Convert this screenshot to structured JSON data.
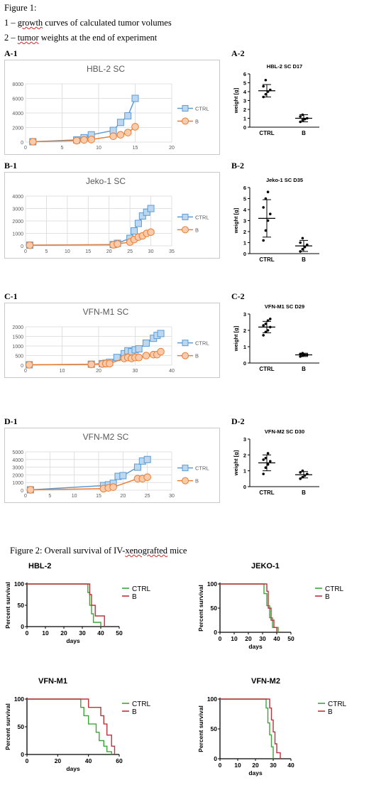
{
  "captions": {
    "fig1_title": "Figure 1:",
    "fig1_line1_pre": "1 – ",
    "fig1_line1_sq": "growth",
    "fig1_line1_post": " curves of calculated tumor volumes",
    "fig1_line2_pre": "2 – ",
    "fig1_line2_sq": "tumor",
    "fig1_line2_post": " weights at the end of experiment",
    "fig2_pre": "Figure 2: Overall survival of IV-",
    "fig2_sq": "xenografted",
    "fig2_post": " mice"
  },
  "panels": {
    "a1": "A-1",
    "a2": "A-2",
    "b1": "B-1",
    "b2": "B-2",
    "c1": "C-1",
    "c2": "C-2",
    "d1": "D-1",
    "d2": "D-2"
  },
  "colors": {
    "ctrl_line": "#5b9bd5",
    "ctrl_fill": "#bdd7ee",
    "b_line": "#ed7d31",
    "b_fill": "#f8cbad",
    "surv_ctrl": "#3aa63a",
    "surv_b": "#c0313a"
  },
  "chart_data": [
    {
      "id": "growth-hbl2",
      "type": "line",
      "title": "HBL-2 SC",
      "xlim": [
        0,
        20
      ],
      "xticks": [
        0,
        5,
        10,
        15,
        20
      ],
      "ylim": [
        0,
        8000
      ],
      "yticks": [
        0,
        2000,
        4000,
        6000,
        8000
      ],
      "grid": true,
      "legend": "right",
      "series": [
        {
          "name": "CTRL",
          "x": [
            1,
            7,
            8,
            9,
            12,
            13,
            14,
            15
          ],
          "y": [
            50,
            300,
            600,
            1000,
            1600,
            2700,
            3600,
            6000
          ]
        },
        {
          "name": "B",
          "x": [
            1,
            7,
            8,
            9,
            12,
            13,
            14,
            15
          ],
          "y": [
            50,
            200,
            300,
            350,
            800,
            1000,
            1300,
            2100
          ]
        }
      ]
    },
    {
      "id": "growth-jeko1",
      "type": "line",
      "title": "Jeko-1 SC",
      "xlim": [
        0,
        35
      ],
      "xticks": [
        0,
        5,
        10,
        15,
        20,
        25,
        30,
        35
      ],
      "ylim": [
        0,
        4000
      ],
      "yticks": [
        0,
        1000,
        2000,
        3000,
        4000
      ],
      "grid": true,
      "legend": "right",
      "series": [
        {
          "name": "CTRL",
          "x": [
            1,
            21,
            22,
            25,
            26,
            27,
            28,
            29,
            30
          ],
          "y": [
            50,
            100,
            200,
            600,
            1200,
            1800,
            2400,
            2700,
            3000
          ]
        },
        {
          "name": "B",
          "x": [
            1,
            21,
            22,
            25,
            26,
            27,
            28,
            29,
            30
          ],
          "y": [
            50,
            80,
            150,
            300,
            500,
            700,
            800,
            1000,
            1100
          ]
        }
      ]
    },
    {
      "id": "growth-vfnm1",
      "type": "line",
      "title": "VFN-M1 SC",
      "xlim": [
        0,
        40
      ],
      "xticks": [
        0,
        10,
        20,
        30,
        40
      ],
      "ylim": [
        0,
        2000
      ],
      "yticks": [
        0,
        500,
        1000,
        1500,
        2000
      ],
      "grid": true,
      "legend": "right",
      "series": [
        {
          "name": "CTRL",
          "x": [
            1,
            18,
            21,
            22,
            23,
            25,
            27,
            28,
            29,
            30,
            31,
            33,
            35,
            36,
            37
          ],
          "y": [
            20,
            50,
            80,
            100,
            150,
            400,
            600,
            750,
            700,
            800,
            850,
            1150,
            1400,
            1550,
            1650
          ]
        },
        {
          "name": "B",
          "x": [
            1,
            18,
            21,
            22,
            23,
            27,
            28,
            29,
            30,
            31,
            33,
            35,
            36,
            37
          ],
          "y": [
            20,
            40,
            60,
            80,
            80,
            350,
            400,
            350,
            400,
            400,
            500,
            550,
            550,
            700
          ]
        }
      ]
    },
    {
      "id": "growth-vfnm2",
      "type": "line",
      "title": "VFN-M2 SC",
      "xlim": [
        0,
        30
      ],
      "xticks": [
        0,
        5,
        10,
        15,
        20,
        25,
        30
      ],
      "ylim": [
        0,
        5000
      ],
      "yticks": [
        0,
        1000,
        2000,
        3000,
        4000,
        5000
      ],
      "grid": true,
      "legend": "right",
      "series": [
        {
          "name": "CTRL",
          "x": [
            1,
            16,
            17,
            18,
            19,
            20,
            23,
            24,
            25
          ],
          "y": [
            50,
            600,
            700,
            900,
            1800,
            1900,
            3000,
            3800,
            4000
          ]
        },
        {
          "name": "B",
          "x": [
            1,
            16,
            17,
            18,
            23,
            24,
            25
          ],
          "y": [
            50,
            200,
            300,
            400,
            1500,
            1500,
            1700
          ]
        }
      ]
    },
    {
      "id": "weight-hbl2",
      "type": "scatter",
      "title": "HBL-2 SC   D17",
      "ylabel": "weight [g]",
      "categories": [
        "CTRL",
        "B"
      ],
      "ylim": [
        0,
        6
      ],
      "yticks": [
        0,
        1,
        2,
        3,
        4,
        5,
        6
      ],
      "groups": [
        {
          "name": "CTRL",
          "mean": 4.1,
          "sd": 0.7,
          "points": [
            3.4,
            3.7,
            4.0,
            4.2,
            4.6,
            5.3
          ]
        },
        {
          "name": "B",
          "mean": 1.0,
          "sd": 0.4,
          "points": [
            0.6,
            0.8,
            0.9,
            1.0,
            1.2,
            1.4
          ]
        }
      ]
    },
    {
      "id": "weight-jeko1",
      "type": "scatter",
      "title": "Jeko-1 SC   D35",
      "ylabel": "weight [g]",
      "categories": [
        "CTRL",
        "B"
      ],
      "ylim": [
        0,
        6
      ],
      "yticks": [
        0,
        1,
        2,
        3,
        4,
        5,
        6
      ],
      "groups": [
        {
          "name": "CTRL",
          "mean": 3.2,
          "sd": 1.7,
          "points": [
            1.2,
            2.1,
            3.0,
            3.6,
            4.2,
            5.0,
            5.6
          ]
        },
        {
          "name": "B",
          "mean": 0.7,
          "sd": 0.5,
          "points": [
            0.2,
            0.4,
            0.6,
            0.8,
            1.0,
            1.4
          ]
        }
      ]
    },
    {
      "id": "weight-vfnm1",
      "type": "scatter",
      "title": "VFN-M1 SC   D29",
      "ylabel": "weight [g]",
      "categories": [
        "CTRL",
        "B"
      ],
      "ylim": [
        0,
        3
      ],
      "yticks": [
        0,
        1,
        2,
        3
      ],
      "groups": [
        {
          "name": "CTRL",
          "mean": 2.2,
          "sd": 0.35,
          "points": [
            1.7,
            1.9,
            2.0,
            2.2,
            2.3,
            2.4,
            2.6,
            2.7
          ]
        },
        {
          "name": "B",
          "mean": 0.5,
          "sd": 0.1,
          "points": [
            0.4,
            0.45,
            0.5,
            0.5,
            0.55,
            0.6
          ]
        }
      ]
    },
    {
      "id": "weight-vfnm2",
      "type": "scatter",
      "title": "VFN-M2 SC   D30",
      "ylabel": "weight [g]",
      "categories": [
        "CTRL",
        "B"
      ],
      "ylim": [
        0,
        3
      ],
      "yticks": [
        0,
        1,
        2,
        3
      ],
      "groups": [
        {
          "name": "CTRL",
          "mean": 1.5,
          "sd": 0.5,
          "points": [
            0.8,
            1.2,
            1.4,
            1.6,
            1.7,
            1.8,
            2.1
          ]
        },
        {
          "name": "B",
          "mean": 0.75,
          "sd": 0.2,
          "points": [
            0.5,
            0.6,
            0.7,
            0.8,
            0.9,
            1.0
          ]
        }
      ]
    },
    {
      "id": "surv-hbl2",
      "type": "line",
      "title": "HBL-2",
      "xlabel": "days",
      "ylabel": "Percent survival",
      "xlim": [
        0,
        50
      ],
      "xticks": [
        0,
        10,
        20,
        30,
        40,
        50
      ],
      "ylim": [
        0,
        100
      ],
      "yticks": [
        0,
        50,
        100
      ],
      "series": [
        {
          "name": "CTRL",
          "x": [
            0,
            33,
            33,
            34,
            34,
            35,
            35,
            36,
            36,
            40,
            40
          ],
          "y": [
            100,
            100,
            80,
            80,
            50,
            50,
            30,
            30,
            10,
            10,
            0
          ]
        },
        {
          "name": "B",
          "x": [
            0,
            34,
            34,
            35,
            35,
            37,
            37,
            42,
            42
          ],
          "y": [
            100,
            100,
            75,
            75,
            50,
            50,
            25,
            25,
            0
          ]
        }
      ]
    },
    {
      "id": "surv-jeko1",
      "type": "line",
      "title": "JEKO-1",
      "xlabel": "days",
      "ylabel": "Percent survival",
      "xlim": [
        0,
        50
      ],
      "xticks": [
        0,
        10,
        20,
        30,
        40,
        50
      ],
      "ylim": [
        0,
        100
      ],
      "yticks": [
        0,
        50,
        100
      ],
      "series": [
        {
          "name": "CTRL",
          "x": [
            0,
            31,
            31,
            33,
            33,
            35,
            35,
            37,
            37,
            41,
            41
          ],
          "y": [
            100,
            100,
            80,
            80,
            55,
            55,
            30,
            30,
            10,
            10,
            0
          ]
        },
        {
          "name": "B",
          "x": [
            0,
            33,
            33,
            34,
            34,
            36,
            36,
            38,
            38,
            40,
            40
          ],
          "y": [
            100,
            100,
            85,
            85,
            50,
            50,
            25,
            25,
            10,
            10,
            0
          ]
        }
      ]
    },
    {
      "id": "surv-vfnm1",
      "type": "line",
      "title": "VFN-M1",
      "xlabel": "days",
      "ylabel": "Percent survival",
      "xlim": [
        0,
        60
      ],
      "xticks": [
        0,
        20,
        40,
        60
      ],
      "ylim": [
        0,
        100
      ],
      "yticks": [
        0,
        50,
        100
      ],
      "series": [
        {
          "name": "CTRL",
          "x": [
            0,
            35,
            35,
            37,
            37,
            40,
            40,
            45,
            45,
            47,
            47,
            50,
            50,
            52,
            52,
            55,
            55
          ],
          "y": [
            100,
            100,
            85,
            85,
            70,
            70,
            55,
            55,
            40,
            40,
            25,
            25,
            15,
            15,
            5,
            5,
            0
          ]
        },
        {
          "name": "B",
          "x": [
            0,
            40,
            40,
            48,
            48,
            50,
            50,
            52,
            52,
            55,
            55,
            57,
            57
          ],
          "y": [
            100,
            100,
            85,
            85,
            70,
            70,
            55,
            55,
            35,
            35,
            15,
            15,
            0
          ]
        }
      ]
    },
    {
      "id": "surv-vfnm2",
      "type": "line",
      "title": "VFN-M2",
      "xlabel": "days",
      "ylabel": "Percent survival",
      "xlim": [
        0,
        40
      ],
      "xticks": [
        0,
        10,
        20,
        30,
        40
      ],
      "ylim": [
        0,
        100
      ],
      "yticks": [
        0,
        50,
        100
      ],
      "series": [
        {
          "name": "CTRL",
          "x": [
            0,
            26,
            26,
            27,
            27,
            28,
            28,
            29,
            29,
            30,
            30
          ],
          "y": [
            100,
            100,
            85,
            85,
            60,
            60,
            40,
            40,
            20,
            20,
            0
          ]
        },
        {
          "name": "B",
          "x": [
            0,
            28,
            28,
            29,
            29,
            30,
            30,
            31,
            31,
            32,
            32,
            34,
            34
          ],
          "y": [
            100,
            100,
            85,
            85,
            65,
            65,
            45,
            45,
            25,
            25,
            10,
            10,
            0
          ]
        }
      ]
    }
  ]
}
